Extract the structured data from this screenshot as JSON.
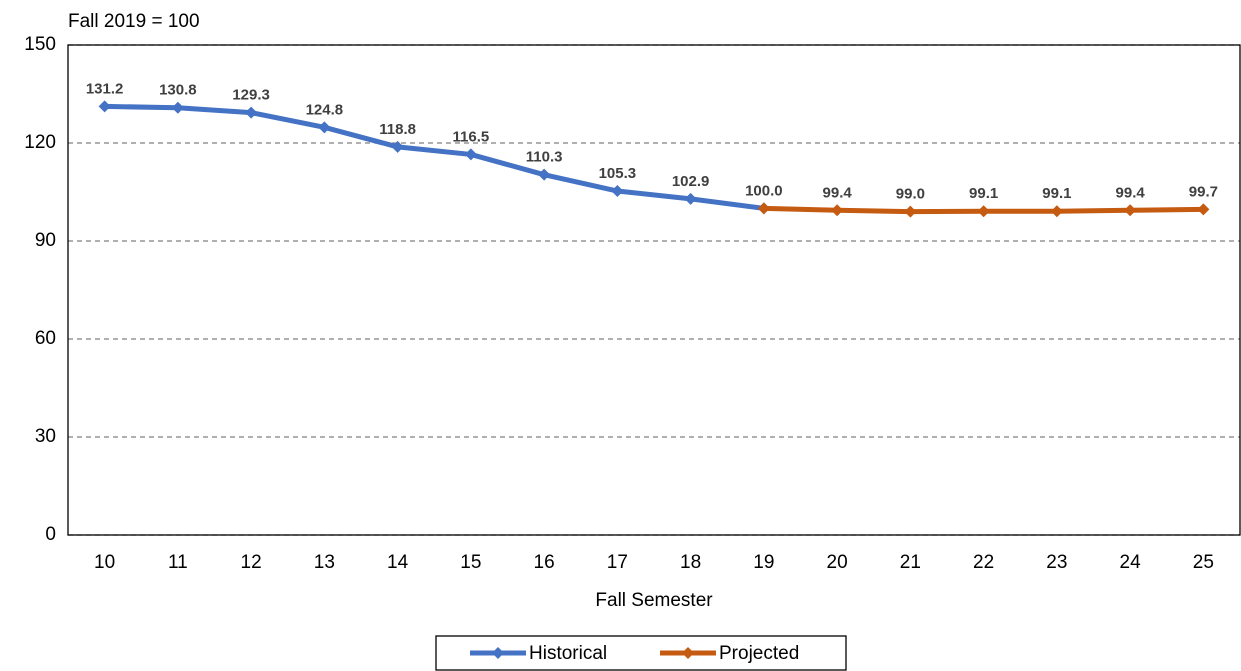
{
  "chart_data": {
    "type": "line",
    "y_label": "Fall 2019 = 100",
    "x_label": "Fall Semester",
    "categories": [
      "10",
      "11",
      "12",
      "13",
      "14",
      "15",
      "16",
      "17",
      "18",
      "19",
      "20",
      "21",
      "22",
      "23",
      "24",
      "25"
    ],
    "series": [
      {
        "name": "Historical",
        "color": "#4472c4",
        "values": [
          131.2,
          130.8,
          129.3,
          124.8,
          118.8,
          116.5,
          110.3,
          105.3,
          102.9,
          100,
          null,
          null,
          null,
          null,
          null,
          null
        ],
        "value_labels": [
          "131.2",
          "130.8",
          "129.3",
          "124.8",
          "118.8",
          "116.5",
          "110.3",
          "105.3",
          "102.9",
          null,
          null,
          null,
          null,
          null,
          null,
          null
        ]
      },
      {
        "name": "Projected",
        "color": "#c55a11",
        "values": [
          null,
          null,
          null,
          null,
          null,
          null,
          null,
          null,
          null,
          100,
          99.4,
          99,
          99.1,
          99.1,
          99.4,
          99.7
        ],
        "value_labels": [
          null,
          null,
          null,
          null,
          null,
          null,
          null,
          null,
          null,
          "100.0",
          "99.4",
          "99.0",
          "99.1",
          "99.1",
          "99.4",
          "99.7"
        ]
      }
    ],
    "ylim": [
      0,
      150
    ],
    "yticks": [
      0,
      30,
      60,
      90,
      120,
      150
    ],
    "grid": true,
    "legend": "bottom"
  }
}
